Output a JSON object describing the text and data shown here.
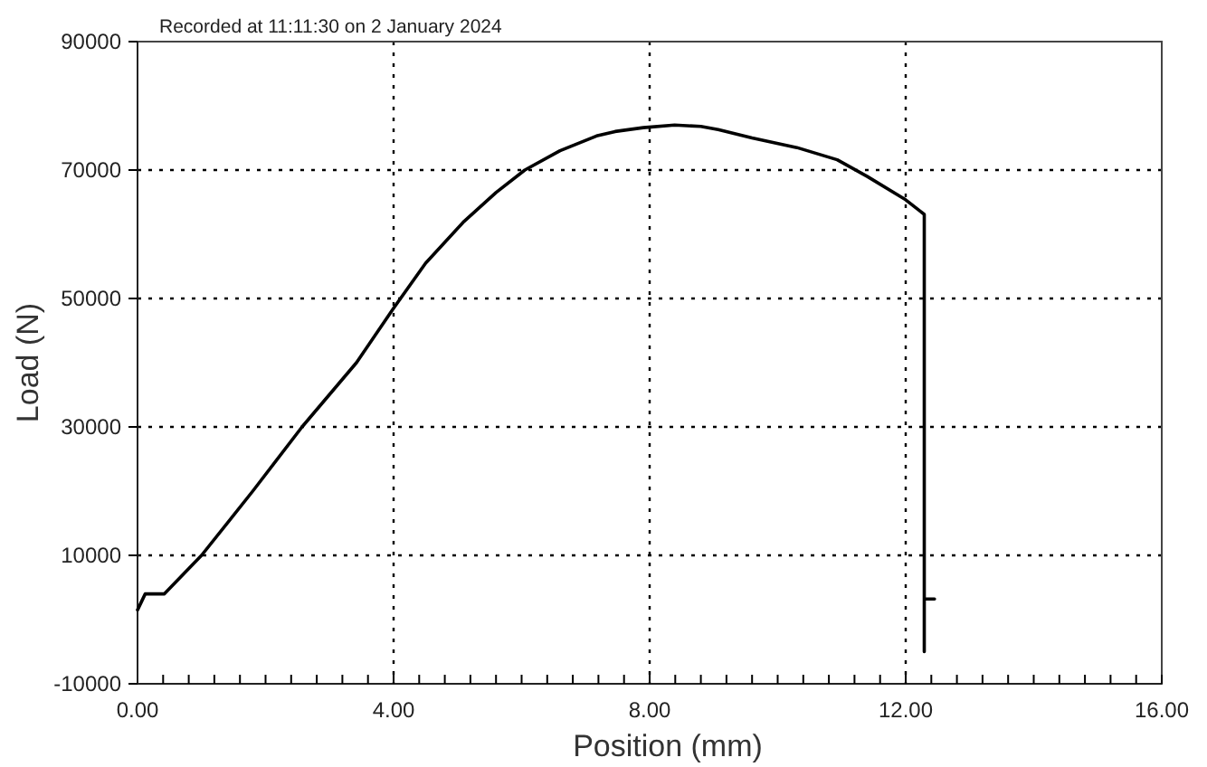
{
  "chart_data": {
    "type": "line",
    "title": "Recorded at 11:11:30 on 2 January 2024",
    "xlabel": "Position (mm)",
    "ylabel": "Load (N)",
    "xlim": [
      0,
      16
    ],
    "ylim": [
      -10000,
      90000
    ],
    "xticks": [
      {
        "value": 0,
        "label": "0.00"
      },
      {
        "value": 0.4,
        "label": null
      },
      {
        "value": 0.8,
        "label": null
      },
      {
        "value": 1.2,
        "label": null
      },
      {
        "value": 1.6,
        "label": null
      },
      {
        "value": 2,
        "label": null
      },
      {
        "value": 2.4,
        "label": null
      },
      {
        "value": 2.8,
        "label": null
      },
      {
        "value": 3.2,
        "label": null
      },
      {
        "value": 3.6,
        "label": null
      },
      {
        "value": 4,
        "label": "4.00"
      },
      {
        "value": 4.4,
        "label": null
      },
      {
        "value": 4.8,
        "label": null
      },
      {
        "value": 5.2,
        "label": null
      },
      {
        "value": 5.6,
        "label": null
      },
      {
        "value": 6,
        "label": null
      },
      {
        "value": 6.4,
        "label": null
      },
      {
        "value": 6.8,
        "label": null
      },
      {
        "value": 7.2,
        "label": null
      },
      {
        "value": 7.6,
        "label": null
      },
      {
        "value": 8,
        "label": "8.00"
      },
      {
        "value": 8.4,
        "label": null
      },
      {
        "value": 8.8,
        "label": null
      },
      {
        "value": 9.2,
        "label": null
      },
      {
        "value": 9.6,
        "label": null
      },
      {
        "value": 10,
        "label": null
      },
      {
        "value": 10.4,
        "label": null
      },
      {
        "value": 10.8,
        "label": null
      },
      {
        "value": 11.2,
        "label": null
      },
      {
        "value": 11.6,
        "label": null
      },
      {
        "value": 12,
        "label": "12.00"
      },
      {
        "value": 12.4,
        "label": null
      },
      {
        "value": 12.8,
        "label": null
      },
      {
        "value": 13.2,
        "label": null
      },
      {
        "value": 13.6,
        "label": null
      },
      {
        "value": 14,
        "label": null
      },
      {
        "value": 14.4,
        "label": null
      },
      {
        "value": 14.8,
        "label": null
      },
      {
        "value": 15.2,
        "label": null
      },
      {
        "value": 15.6,
        "label": null
      },
      {
        "value": 16,
        "label": "16.00"
      }
    ],
    "yticks": [
      -10000,
      10000,
      30000,
      50000,
      70000,
      90000
    ],
    "grid": true,
    "line_style": "solid",
    "marker": "none",
    "series": [
      {
        "color": "#000000",
        "x": [
          0,
          0.12,
          0.42,
          1.0,
          1.8,
          2.57,
          3.42,
          4.0,
          4.5,
          5.1,
          5.6,
          6.05,
          6.6,
          7.17,
          7.46,
          7.9,
          8.39,
          8.8,
          9.07,
          9.6,
          10.3,
          10.93,
          11.4,
          11.98,
          12.29,
          12.29,
          12.45,
          12.29,
          12.29
        ],
        "values": [
          1500,
          4000,
          4000,
          10000,
          20000,
          30000,
          40000,
          48500,
          55500,
          62000,
          66500,
          70000,
          73000,
          75300,
          76000,
          76600,
          77000,
          76800,
          76300,
          75000,
          73500,
          71600,
          69000,
          65500,
          63100,
          3200,
          3200,
          3200,
          -5000
        ]
      }
    ]
  }
}
